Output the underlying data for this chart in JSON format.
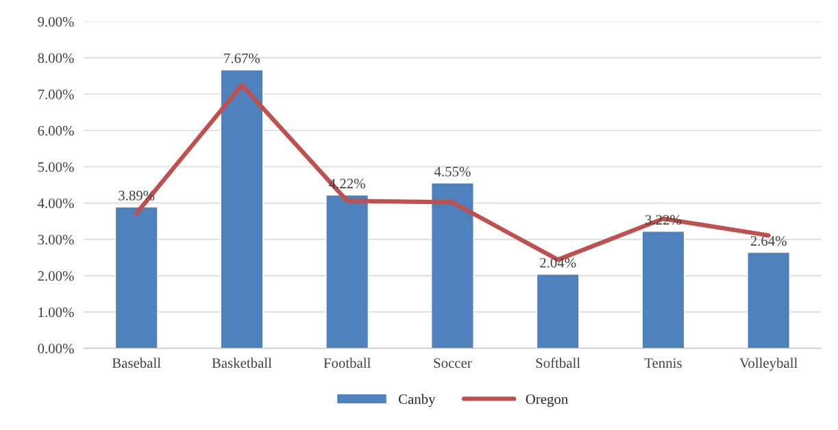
{
  "chart_data": {
    "type": "bar",
    "categories": [
      "Baseball",
      "Basketball",
      "Football",
      "Soccer",
      "Softball",
      "Tennis",
      "Volleyball"
    ],
    "series": [
      {
        "name": "Canby",
        "color": "#4f81bd",
        "values": [
          3.89,
          7.67,
          4.22,
          4.55,
          2.04,
          3.22,
          2.64
        ],
        "value_labels": [
          "3.89%",
          "7.67%",
          "4.22%",
          "4.55%",
          "2.04%",
          "3.22%",
          "2.64%"
        ]
      },
      {
        "name": "Oregon",
        "type": "line",
        "color": "#c0504d",
        "values": [
          3.72,
          7.25,
          4.06,
          4.02,
          2.44,
          3.57,
          3.11
        ]
      }
    ],
    "ylim": [
      0,
      9
    ],
    "yticks": [
      {
        "value": 0,
        "label": "0.00%"
      },
      {
        "value": 1,
        "label": "1.00%"
      },
      {
        "value": 2,
        "label": "2.00%"
      },
      {
        "value": 3,
        "label": "3.00%"
      },
      {
        "value": 4,
        "label": "4.00%"
      },
      {
        "value": 5,
        "label": "5.00%"
      },
      {
        "value": 6,
        "label": "6.00%"
      },
      {
        "value": 7,
        "label": "7.00%"
      },
      {
        "value": 8,
        "label": "8.00%"
      },
      {
        "value": 9,
        "label": "9.00%"
      }
    ],
    "grid": "y",
    "legend": "bottom",
    "marker": "none",
    "line_style": "solid"
  }
}
